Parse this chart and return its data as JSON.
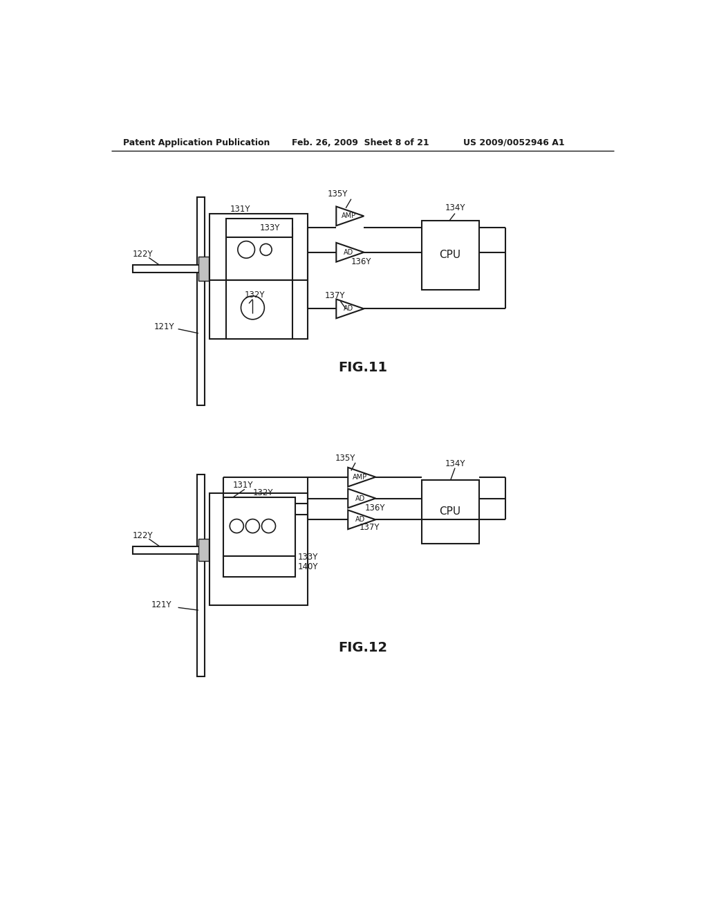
{
  "bg_color": "#ffffff",
  "line_color": "#1a1a1a",
  "header_left": "Patent Application Publication",
  "header_mid": "Feb. 26, 2009  Sheet 8 of 21",
  "header_right": "US 2009/0052946 A1",
  "fig11_caption": "FIG.11",
  "fig12_caption": "FIG.12"
}
